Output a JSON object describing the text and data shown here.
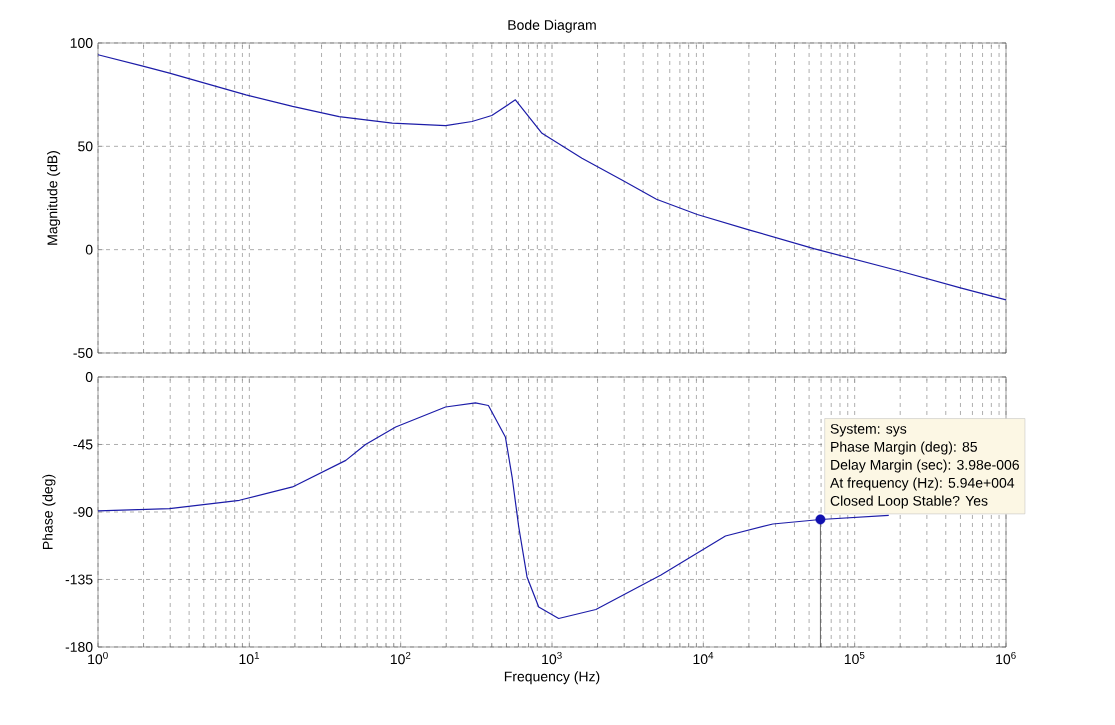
{
  "chart_data": [
    {
      "type": "line",
      "title": "Bode Diagram",
      "ylabel": "Magnitude (dB)",
      "log": "x",
      "grid": true,
      "tick_labels": "y",
      "xlim": [
        1,
        1000000
      ],
      "xticks": [
        1,
        10,
        100,
        1000,
        10000,
        100000,
        1000000
      ],
      "ylim": [
        -50,
        100
      ],
      "yticks": [
        -50,
        0,
        50,
        100
      ],
      "series": [
        {
          "color": "#1c1ca8",
          "x": [
            1,
            1.98,
            2.97,
            9.5,
            19.3,
            39.2,
            88,
            198,
            296,
            400,
            573,
            859,
            1578,
            2938,
            4900,
            9120,
            20000,
            53700,
            195000,
            500000,
            1000000
          ],
          "values": [
            94.3,
            88.8,
            85.4,
            74.9,
            69.3,
            64.4,
            61.2,
            60,
            62,
            64.9,
            72.5,
            56.3,
            44.2,
            33.5,
            24.4,
            17,
            9.6,
            0.5,
            -10.2,
            -18.5,
            -24.3
          ]
        }
      ]
    },
    {
      "type": "line",
      "ylabel": "Phase (deg)",
      "xlabel": "Frequency  (Hz)",
      "log": "x",
      "grid": true,
      "xlim": [
        1,
        1000000
      ],
      "xticks": [
        {
          "value": 1,
          "label": "10$^{0}$"
        },
        {
          "value": 10,
          "label": "10$^{1}$"
        },
        {
          "value": 100,
          "label": "10$^{2}$"
        },
        {
          "value": 1000,
          "label": "10$^{3}$"
        },
        {
          "value": 10000,
          "label": "10$^{4}$"
        },
        {
          "value": 100000,
          "label": "10$^{5}$"
        },
        {
          "value": 1000000,
          "label": "10$^{6}$"
        }
      ],
      "ylim": [
        -180,
        0
      ],
      "yticks": [
        -180,
        -135,
        -90,
        -45,
        0
      ],
      "series": [
        {
          "color": "#1c1ca8",
          "x": [
            1,
            2.97,
            8.6,
            19.3,
            43.4,
            58.6,
            92.7,
            198,
            312,
            380,
            492,
            545,
            603,
            684,
            817,
            1107,
            1950,
            5250,
            14000,
            28800,
            59400,
            168000
          ],
          "values": [
            -89.3,
            -87.8,
            -82.2,
            -73.3,
            -55.6,
            -45,
            -33.3,
            -20,
            -17.3,
            -19,
            -40,
            -66.7,
            -100,
            -133.3,
            -153.3,
            -161,
            -155,
            -132,
            -106,
            -98,
            -95,
            -92.3
          ]
        },
        {
          "type": "lollipop",
          "color": "#1010b0",
          "x": [
            59400
          ],
          "values": [
            -95
          ]
        }
      ],
      "annotations": [
        "System: sys",
        "Phase Margin (deg): 85",
        "Delay Margin (sec): 3.98e-006",
        "At frequency (Hz): 5.94e+004",
        "Closed Loop Stable? Yes"
      ]
    }
  ]
}
